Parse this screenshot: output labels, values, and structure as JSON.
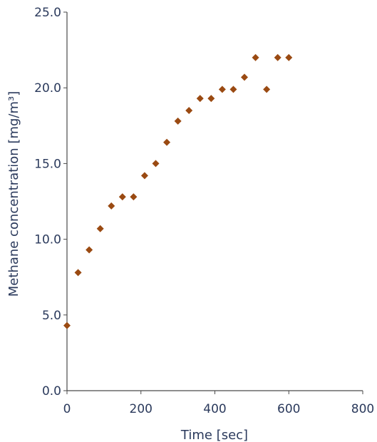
{
  "chart_data": {
    "type": "scatter",
    "title": "",
    "xlabel": "Time [sec]",
    "ylabel": "Methane concentration [mg/m³]",
    "xlim": [
      0,
      800
    ],
    "ylim": [
      0,
      25
    ],
    "xticks": [
      0,
      200,
      400,
      600,
      800
    ],
    "yticks": [
      0,
      5,
      10,
      15,
      20,
      25
    ],
    "xtick_labels": [
      "0",
      "200",
      "400",
      "600",
      "800"
    ],
    "ytick_labels": [
      "0.0",
      "5.0",
      "10.0",
      "15.0",
      "20.0",
      "25.0"
    ],
    "grid": false,
    "legend": "none",
    "marker": "diamond",
    "color": "#9a4a12",
    "series": [
      {
        "x": [
          0,
          30,
          60,
          90,
          120,
          150,
          180,
          210,
          240,
          270,
          300,
          330,
          360,
          390,
          420,
          450,
          480,
          510,
          540,
          570,
          600
        ],
        "y": [
          4.3,
          7.8,
          9.3,
          10.7,
          12.2,
          12.8,
          12.8,
          14.2,
          15.0,
          16.4,
          17.8,
          18.5,
          19.3,
          19.3,
          19.9,
          19.9,
          20.7,
          22.0,
          19.9,
          22.0,
          22.0
        ]
      }
    ]
  }
}
